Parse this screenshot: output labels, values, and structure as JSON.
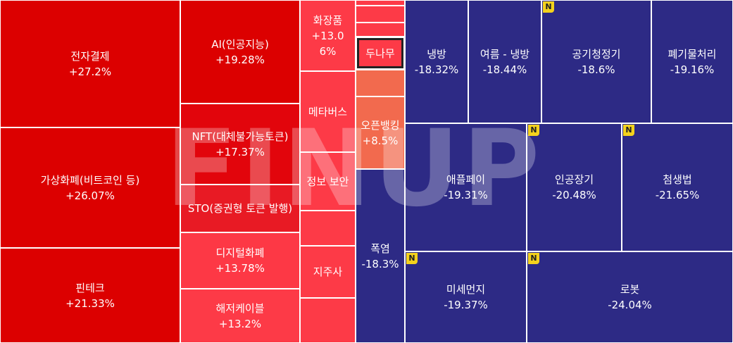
{
  "chart_data": {
    "type": "treemap",
    "watermark": "FINUP",
    "tiles": [
      {
        "label": "전자결제",
        "value": 27.2,
        "value_label": "+27.2%",
        "color": "#dc0000"
      },
      {
        "label": "가상화폐(비트코인 등)",
        "value": 26.07,
        "value_label": "+26.07%",
        "color": "#dc0000"
      },
      {
        "label": "핀테크",
        "value": 21.33,
        "value_label": "+21.33%",
        "color": "#dc0000"
      },
      {
        "label": "AI(인공지능)",
        "value": 19.28,
        "value_label": "+19.28%",
        "color": "#dc0000"
      },
      {
        "label": "NFT(대체불가능토큰)",
        "value": 17.37,
        "value_label": "+17.37%",
        "color": "#e2050c"
      },
      {
        "label": "STO(증권형 토큰 발행)",
        "color": "#e81a24"
      },
      {
        "label": "디지털화폐",
        "value": 13.78,
        "value_label": "+13.78%",
        "color": "#fd3845"
      },
      {
        "label": "해저케이블",
        "value": 13.2,
        "value_label": "+13.2%",
        "color": "#fd3a47"
      },
      {
        "label": "화장품",
        "value": 13.06,
        "value_label": "+13.06%",
        "color": "#fd3a47"
      },
      {
        "label": "메타버스",
        "color": "#fd3a47"
      },
      {
        "label": "정보 보안",
        "color": "#fd3a47"
      },
      {
        "label": "지주사",
        "color": "#fd3a47"
      },
      {
        "label": "두나무",
        "color": "#fd3a47",
        "highlight": true
      },
      {
        "label": "오픈뱅킹",
        "value": 8.5,
        "value_label": "+8.5%",
        "color": "#f26a4e"
      },
      {
        "label": "폭염",
        "value": -18.3,
        "value_label": "-18.3%",
        "color": "#2d2a85"
      },
      {
        "label": "냉방",
        "value": -18.32,
        "value_label": "-18.32%",
        "color": "#2d2a85"
      },
      {
        "label": "여름 - 냉방",
        "value": -18.44,
        "value_label": "-18.44%",
        "color": "#2d2a85"
      },
      {
        "label": "공기청정기",
        "value": -18.6,
        "value_label": "-18.6%",
        "color": "#2d2a85",
        "badge": "N"
      },
      {
        "label": "폐기물처리",
        "value": -19.16,
        "value_label": "-19.16%",
        "color": "#2d2a85"
      },
      {
        "label": "애플페이",
        "value": -19.31,
        "value_label": "-19.31%",
        "color": "#2d2a85"
      },
      {
        "label": "인공장기",
        "value": -20.48,
        "value_label": "-20.48%",
        "color": "#2d2a85",
        "badge": "N"
      },
      {
        "label": "첨생법",
        "value": -21.65,
        "value_label": "-21.65%",
        "color": "#2d2a85",
        "badge": "N"
      },
      {
        "label": "미세먼지",
        "value": -19.37,
        "value_label": "-19.37%",
        "color": "#2d2a85",
        "badge": "N"
      },
      {
        "label": "로봇",
        "value": -24.04,
        "value_label": "-24.04%",
        "color": "#2d2a85",
        "badge": "N"
      }
    ]
  }
}
